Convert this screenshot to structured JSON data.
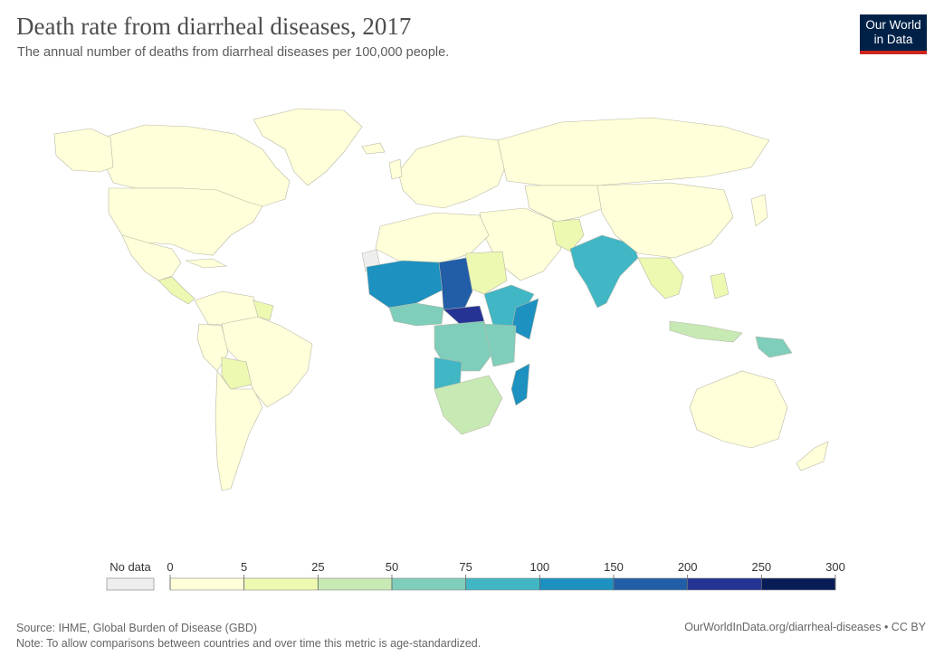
{
  "header": {
    "title": "Death rate from diarrheal diseases, 2017",
    "subtitle": "The annual number of deaths from diarrheal diseases per 100,000 people."
  },
  "logo": {
    "line1": "Our World",
    "line2": "in Data",
    "bg_color": "#002147",
    "accent_color": "#ce261e"
  },
  "legend": {
    "no_data_label": "No data",
    "no_data_color": "#eeeeee",
    "ticks": [
      "0",
      "5",
      "25",
      "50",
      "75",
      "100",
      "150",
      "200",
      "250",
      "300"
    ],
    "bins": [
      {
        "from": 0,
        "to": 5,
        "color": "#ffffd9"
      },
      {
        "from": 5,
        "to": 25,
        "color": "#edf8b1"
      },
      {
        "from": 25,
        "to": 50,
        "color": "#c7e9b4"
      },
      {
        "from": 50,
        "to": 75,
        "color": "#7fcdbb"
      },
      {
        "from": 75,
        "to": 100,
        "color": "#41b6c4"
      },
      {
        "from": 100,
        "to": 150,
        "color": "#1d91c0"
      },
      {
        "from": 150,
        "to": 200,
        "color": "#225ea8"
      },
      {
        "from": 200,
        "to": 250,
        "color": "#253494"
      },
      {
        "from": 250,
        "to": 300,
        "color": "#081d58"
      }
    ]
  },
  "footer": {
    "source": "Source: IHME, Global Burden of Disease (GBD)",
    "note": "Note: To allow comparisons between countries and over time this metric is age-standardized.",
    "credit": "OurWorldInData.org/diarrheal-diseases • CC BY"
  }
}
